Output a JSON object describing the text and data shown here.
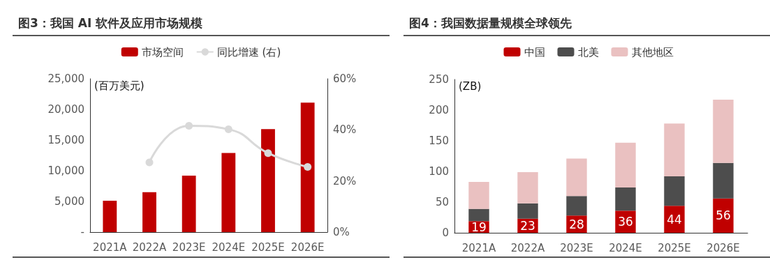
{
  "chart_data": [
    {
      "type": "bar",
      "title": "图3：我国 AI 软件及应用市场规模",
      "ylabel": "(百万美元)",
      "categories": [
        "2021A",
        "2022A",
        "2023E",
        "2024E",
        "2025E",
        "2026E"
      ],
      "series": [
        {
          "name": "市场空间",
          "color": "#c00000",
          "values": [
            5100,
            6500,
            9200,
            12900,
            16800,
            21100
          ]
        },
        {
          "name": "同比增速 (右)",
          "type": "line",
          "axis": "y2",
          "color": "#d9d9d9",
          "marker": "circle",
          "values": [
            null,
            27.3,
            41.6,
            40.2,
            30.9,
            25.5
          ]
        }
      ],
      "ylim": [
        0,
        25000
      ],
      "yticks": [
        {
          "value": 0,
          "label": "-"
        },
        {
          "value": 5000,
          "label": "5,000"
        },
        {
          "value": 10000,
          "label": "10,000"
        },
        {
          "value": 15000,
          "label": "15,000"
        },
        {
          "value": 20000,
          "label": "20,000"
        },
        {
          "value": 25000,
          "label": "25,000"
        }
      ],
      "y2lim": [
        0,
        60
      ],
      "y2ticks": [
        {
          "value": 0,
          "label": "0%"
        },
        {
          "value": 20,
          "label": "20%"
        },
        {
          "value": 40,
          "label": "40%"
        },
        {
          "value": 60,
          "label": "60%"
        }
      ],
      "grid": false,
      "legend": "top"
    },
    {
      "type": "bar",
      "title": "图4：我国数据量规模全球领先",
      "ylabel": "(ZB)",
      "categories": [
        "2021A",
        "2022A",
        "2023E",
        "2024E",
        "2025E",
        "2026E"
      ],
      "stacked": true,
      "series": [
        {
          "name": "中国",
          "color": "#c00000",
          "values": [
            19,
            23,
            28,
            36,
            44,
            56
          ],
          "value_labels": [
            "19",
            "23",
            "28",
            "36",
            "44",
            "56"
          ]
        },
        {
          "name": "北美",
          "color": "#4d4d4d",
          "values": [
            20,
            25,
            32,
            38,
            48,
            58
          ]
        },
        {
          "name": "其他地区",
          "color": "#eac1c1",
          "values": [
            44,
            51,
            61,
            73,
            86,
            103
          ]
        }
      ],
      "ylim": [
        0,
        250
      ],
      "yticks": [
        0,
        50,
        100,
        150,
        200,
        250
      ],
      "grid": false,
      "legend": "top"
    }
  ]
}
